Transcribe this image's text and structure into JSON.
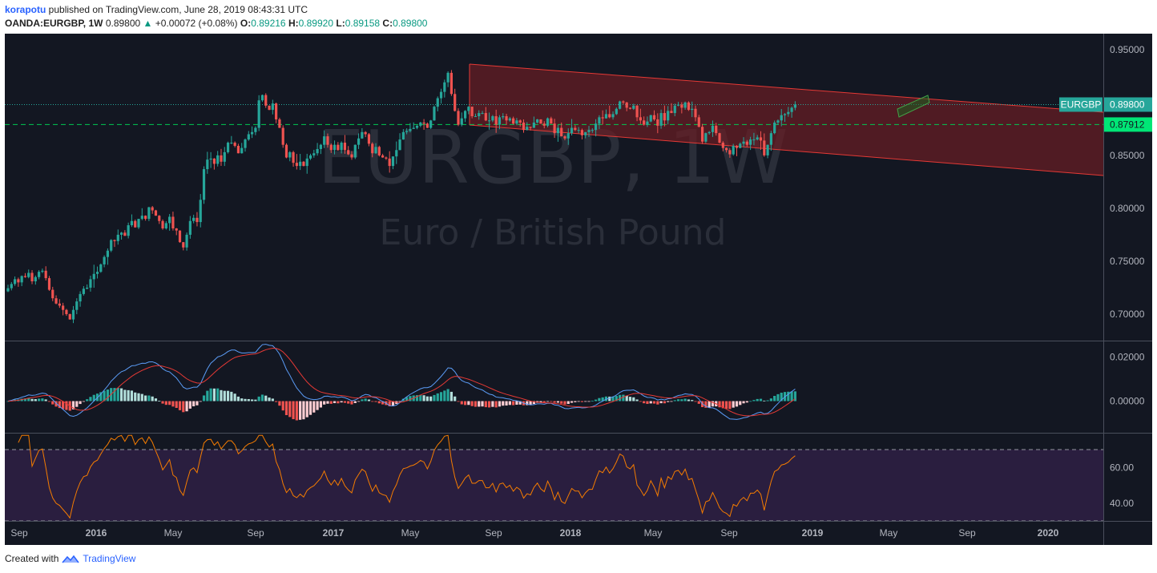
{
  "header": {
    "author": "korapotu",
    "published_text": " published on TradingView.com, June 28, 2019 08:43:31 UTC",
    "symbol": "OANDA:EURGBP, 1W",
    "price": "0.89800",
    "change": "+0.00072 (+0.08%)",
    "open_label": "O:",
    "open": "0.89216",
    "high_label": "H:",
    "high": "0.89920",
    "low_label": "L:",
    "low": "0.89158",
    "close_label": "C:",
    "close": "0.89800"
  },
  "watermark": {
    "symbol": "EURGBP, 1W",
    "name": "Euro / British Pound"
  },
  "footer": {
    "created_with": "Created with",
    "brand": "TradingView"
  },
  "colors": {
    "background": "#131722",
    "up": "#26a69a",
    "down": "#ef5350",
    "channel_fill": "#6b1e24",
    "channel_line": "#e53935",
    "macd_line": "#5b9cf6",
    "signal_line": "#e53935",
    "rsi_line": "#f57c00",
    "rsi_band": "#2a1e3f",
    "price_label": "#26a69a",
    "level_label": "#00e676"
  },
  "chart_data": [
    {
      "type": "candlestick",
      "panel": "price",
      "y_ticks": [
        "0.95000",
        "0.90000",
        "0.85000",
        "0.80000",
        "0.75000",
        "0.70000"
      ],
      "ylim": [
        0.675,
        0.965
      ],
      "x_ticks": [
        "Sep",
        "2016",
        "May",
        "Sep",
        "2017",
        "May",
        "Sep",
        "2018",
        "May",
        "Sep",
        "2019",
        "May",
        "Sep",
        "2020"
      ],
      "x_ticks_bold": [
        false,
        true,
        false,
        false,
        true,
        false,
        false,
        true,
        false,
        false,
        true,
        false,
        false,
        true
      ],
      "current_price_label": "EURGBP",
      "current_price": "0.89800",
      "horizontal_level": "0.87912",
      "closes": [
        0.7245,
        0.7285,
        0.733,
        0.73,
        0.736,
        0.735,
        0.739,
        0.731,
        0.735,
        0.74,
        0.741,
        0.734,
        0.723,
        0.715,
        0.71,
        0.708,
        0.704,
        0.7,
        0.695,
        0.704,
        0.712,
        0.719,
        0.724,
        0.725,
        0.733,
        0.738,
        0.74,
        0.747,
        0.754,
        0.76,
        0.77,
        0.769,
        0.775,
        0.777,
        0.774,
        0.784,
        0.788,
        0.782,
        0.79,
        0.793,
        0.79,
        0.801,
        0.798,
        0.793,
        0.788,
        0.781,
        0.786,
        0.792,
        0.781,
        0.779,
        0.768,
        0.763,
        0.775,
        0.788,
        0.791,
        0.787,
        0.808,
        0.837,
        0.846,
        0.847,
        0.842,
        0.85,
        0.844,
        0.853,
        0.862,
        0.862,
        0.859,
        0.852,
        0.857,
        0.865,
        0.87,
        0.872,
        0.876,
        0.902,
        0.907,
        0.897,
        0.893,
        0.899,
        0.884,
        0.876,
        0.86,
        0.848,
        0.853,
        0.843,
        0.84,
        0.844,
        0.84,
        0.847,
        0.85,
        0.852,
        0.856,
        0.86,
        0.868,
        0.86,
        0.855,
        0.86,
        0.855,
        0.862,
        0.855,
        0.851,
        0.848,
        0.86,
        0.866,
        0.872,
        0.87,
        0.861,
        0.852,
        0.858,
        0.85,
        0.848,
        0.847,
        0.84,
        0.849,
        0.855,
        0.865,
        0.872,
        0.873,
        0.875,
        0.876,
        0.878,
        0.881,
        0.88,
        0.876,
        0.883,
        0.896,
        0.904,
        0.91,
        0.919,
        0.928,
        0.908,
        0.892,
        0.879,
        0.885,
        0.892,
        0.896,
        0.887,
        0.887,
        0.89,
        0.89,
        0.883,
        0.883,
        0.887,
        0.879,
        0.886,
        0.887,
        0.883,
        0.885,
        0.88,
        0.883,
        0.881,
        0.874,
        0.877,
        0.876,
        0.881,
        0.884,
        0.88,
        0.878,
        0.885,
        0.88,
        0.871,
        0.876,
        0.868,
        0.866,
        0.871,
        0.876,
        0.874,
        0.874,
        0.869,
        0.872,
        0.874,
        0.874,
        0.88,
        0.886,
        0.885,
        0.889,
        0.886,
        0.889,
        0.894,
        0.901,
        0.9,
        0.895,
        0.894,
        0.897,
        0.886,
        0.883,
        0.879,
        0.882,
        0.888,
        0.884,
        0.878,
        0.89,
        0.883,
        0.892,
        0.89,
        0.897,
        0.898,
        0.895,
        0.9,
        0.893,
        0.894,
        0.886,
        0.877,
        0.863,
        0.871,
        0.872,
        0.878,
        0.871,
        0.862,
        0.857,
        0.855,
        0.851,
        0.859,
        0.857,
        0.861,
        0.863,
        0.86,
        0.865,
        0.865,
        0.867,
        0.864,
        0.85,
        0.86,
        0.871,
        0.881,
        0.883,
        0.888,
        0.889,
        0.891,
        0.895,
        0.898
      ]
    },
    {
      "type": "macd",
      "panel": "macd",
      "y_ticks": [
        "0.02000",
        "0.00000"
      ],
      "ylim": [
        -0.0143,
        0.027
      ]
    },
    {
      "type": "rsi",
      "panel": "rsi",
      "y_ticks": [
        "60.00",
        "40.00"
      ],
      "ylim": [
        30,
        79
      ],
      "bands": [
        70,
        30
      ]
    }
  ]
}
